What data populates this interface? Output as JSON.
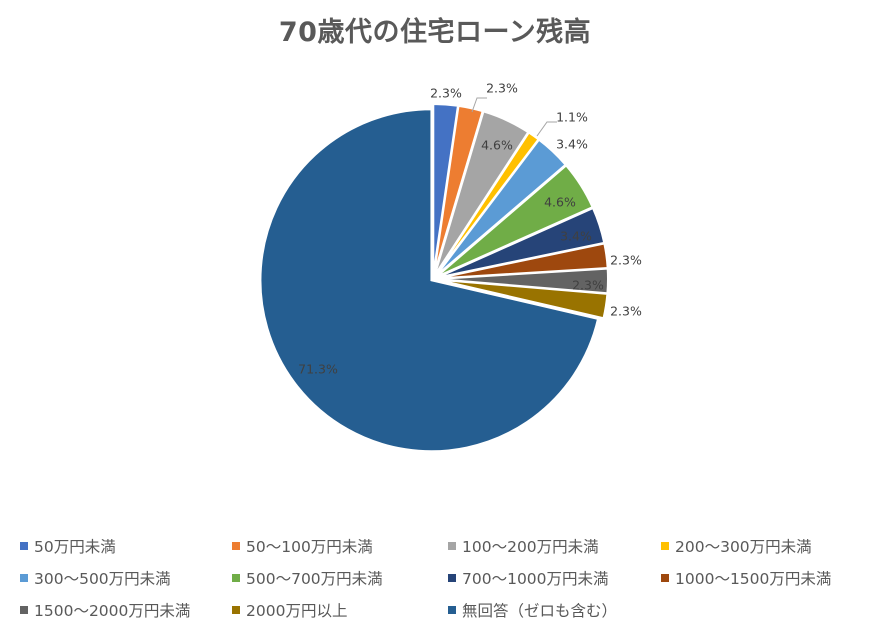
{
  "chart_data": {
    "type": "pie",
    "title": "70歳代の住宅ローン残高",
    "categories": [
      "50万円未満",
      "50〜100万円未満",
      "100〜200万円未満",
      "200〜300万円未満",
      "300〜500万円未満",
      "500〜700万円未満",
      "700〜1000万円未満",
      "1000〜1500万円未満",
      "1500〜2000万円未満",
      "2000万円以上",
      "無回答（ゼロも含む）"
    ],
    "values": [
      2.3,
      2.3,
      4.6,
      1.1,
      3.4,
      4.6,
      3.4,
      2.3,
      2.3,
      2.3,
      71.3
    ],
    "labels": [
      "2.3%",
      "2.3%",
      "4.6%",
      "1.1%",
      "3.4%",
      "4.6%",
      "3.4%",
      "2.3%",
      "2.3%",
      "2.3%",
      "71.3%"
    ],
    "colors": [
      "#4472C4",
      "#ED7D31",
      "#A5A5A5",
      "#FFC000",
      "#5B9BD5",
      "#70AD47",
      "#264478",
      "#9E480E",
      "#636363",
      "#997300",
      "#255E91"
    ],
    "unit": "%",
    "start_angle": "12 o'clock, clockwise",
    "legend_position": "bottom"
  },
  "title": "70歳代の住宅ローン残高",
  "legend": {
    "items": [
      {
        "label": "50万円未満",
        "color": "#4472C4"
      },
      {
        "label": "50〜100万円未満",
        "color": "#ED7D31"
      },
      {
        "label": "100〜200万円未満",
        "color": "#A5A5A5"
      },
      {
        "label": "200〜300万円未満",
        "color": "#FFC000"
      },
      {
        "label": "300〜500万円未満",
        "color": "#5B9BD5"
      },
      {
        "label": "500〜700万円未満",
        "color": "#70AD47"
      },
      {
        "label": "700〜1000万円未満",
        "color": "#264478"
      },
      {
        "label": "1000〜1500万円未満",
        "color": "#9E480E"
      },
      {
        "label": "1500〜2000万円未満",
        "color": "#636363"
      },
      {
        "label": "2000万円以上",
        "color": "#997300"
      },
      {
        "label": "無回答（ゼロも含む）",
        "color": "#255E91"
      }
    ]
  }
}
